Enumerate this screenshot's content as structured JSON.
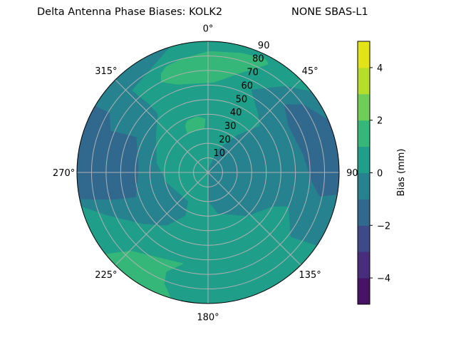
{
  "title_left": "Delta Antenna Phase Biases: KOLK2",
  "title_right": "NONE SBAS-L1",
  "chart_data": {
    "type": "polar-contour",
    "title": "Delta Antenna Phase Biases: KOLK2        NONE SBAS-L1",
    "angular_ticks": [
      {
        "az": 0,
        "label": "0°"
      },
      {
        "az": 45,
        "label": "45°"
      },
      {
        "az": 90,
        "label": "90"
      },
      {
        "az": 135,
        "label": "135°"
      },
      {
        "az": 180,
        "label": "180°"
      },
      {
        "az": 225,
        "label": "225°"
      },
      {
        "az": 270,
        "label": "270°"
      },
      {
        "az": 315,
        "label": "315°"
      }
    ],
    "radial_ticks": [
      10,
      20,
      30,
      40,
      50,
      60,
      70,
      80,
      90
    ],
    "radial_range": [
      0,
      90
    ],
    "theta_zero": "north",
    "theta_direction": "clockwise",
    "grid": true,
    "levels": [
      -5,
      -4,
      -3,
      -2,
      -1,
      0,
      1,
      2,
      3,
      4,
      5
    ],
    "level_colors": [
      "#471365",
      "#472d7b",
      "#3e4989",
      "#31688e",
      "#26828e",
      "#1f9e89",
      "#35b779",
      "#6ece58",
      "#b5de2b",
      "#e2e418"
    ],
    "background_level": [
      0,
      1
    ],
    "regions": [
      {
        "level": [
          -1,
          0
        ],
        "points": [
          [
            347,
            90
          ],
          [
            317,
            77
          ],
          [
            319,
            61
          ],
          [
            319,
            53
          ],
          [
            305,
            44
          ],
          [
            280,
            36
          ],
          [
            256,
            29.5
          ],
          [
            215,
            24.4
          ],
          [
            208,
            33.5
          ],
          [
            218,
            46
          ],
          [
            232,
            57
          ],
          [
            247,
            75
          ],
          [
            257,
            90
          ],
          [
            270,
            90
          ],
          [
            300,
            90
          ],
          [
            330,
            90
          ]
        ]
      },
      {
        "level": [
          -1,
          0
        ],
        "points": [
          [
            55,
            90
          ],
          [
            41.7,
            79
          ],
          [
            27.8,
            64
          ],
          [
            40.8,
            53
          ],
          [
            48.5,
            48
          ],
          [
            38,
            32
          ],
          [
            24,
            17
          ],
          [
            10,
            3
          ],
          [
            178.6,
            20
          ],
          [
            166,
            29
          ],
          [
            138,
            40
          ],
          [
            117.6,
            50
          ],
          [
            112.6,
            60
          ],
          [
            127.7,
            72
          ],
          [
            123,
            90
          ],
          [
            110,
            90
          ],
          [
            90,
            90
          ],
          [
            70,
            90
          ]
        ]
      },
      {
        "level": [
          -2,
          -1
        ],
        "points": [
          [
            300,
            90
          ],
          [
            301,
            79
          ],
          [
            293,
            73
          ],
          [
            296,
            55
          ],
          [
            273,
            48
          ],
          [
            251.5,
            52.5
          ],
          [
            254,
            67
          ],
          [
            259,
            90
          ],
          [
            270,
            90
          ],
          [
            285,
            90
          ]
        ]
      },
      {
        "level": [
          -2,
          -1
        ],
        "points": [
          [
            48.4,
            70
          ],
          [
            54.5,
            80
          ],
          [
            70,
            90
          ],
          [
            80,
            90
          ],
          [
            90,
            90
          ],
          [
            98.7,
            90
          ],
          [
            102,
            78.5
          ],
          [
            95.5,
            72
          ],
          [
            79,
            66.5
          ],
          [
            60,
            64
          ]
        ]
      },
      {
        "level": [
          1,
          2
        ],
        "points": [
          [
            334.7,
            75
          ],
          [
            332.7,
            70
          ],
          [
            341,
            64
          ],
          [
            3.4,
            62
          ],
          [
            16.4,
            70.5
          ],
          [
            29,
            85
          ],
          [
            27,
            87
          ],
          [
            15.7,
            85
          ],
          [
            0.3,
            83
          ],
          [
            347.5,
            80
          ],
          [
            338.4,
            78
          ]
        ]
      },
      {
        "level": [
          1,
          2
        ],
        "points": [
          [
            334,
            35.6
          ],
          [
            332.5,
            30.5
          ],
          [
            354.8,
            30.4
          ],
          [
            357,
            36.8
          ],
          [
            348.8,
            39
          ],
          [
            338,
            38
          ]
        ]
      },
      {
        "level": [
          1,
          2
        ],
        "points": [
          [
            233,
            90
          ],
          [
            224.5,
            75.7
          ],
          [
            195.4,
            65
          ],
          [
            203,
            74
          ],
          [
            201.6,
            82
          ],
          [
            194.4,
            90
          ],
          [
            210,
            90
          ],
          [
            225,
            90
          ]
        ]
      }
    ],
    "colorbar": {
      "label": "Bias (mm)",
      "range": [
        -5,
        5
      ],
      "ticks": [
        -4,
        -2,
        0,
        2,
        4
      ],
      "tick_labels": [
        "−4",
        "−2",
        "0",
        "2",
        "4"
      ]
    }
  }
}
